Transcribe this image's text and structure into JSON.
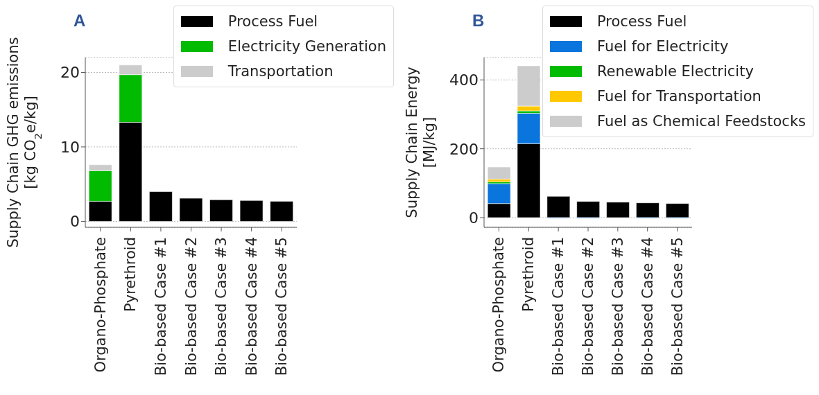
{
  "chart_data": [
    {
      "type": "bar",
      "title": "A",
      "ylabel": "Supply Chain GHG emissions\n[kg CO$_{2}$e/kg]",
      "categories": [
        "Organo-Phosphate",
        "Pyrethroid",
        "Bio-based Case #1",
        "Bio-based Case #2",
        "Bio-based Case #3",
        "Bio-based Case #4",
        "Bio-based Case #5"
      ],
      "stacked": true,
      "ylim": [
        -0.8,
        22
      ],
      "yticks": [
        0,
        10,
        20
      ],
      "grid": "y",
      "legend": "top right",
      "series": [
        {
          "name": "Process Fuel",
          "color": "#000000",
          "values": [
            2.7,
            13.3,
            4.0,
            3.1,
            2.9,
            2.8,
            2.7
          ]
        },
        {
          "name": "Electricity Generation",
          "color": "#00bb00",
          "values": [
            4.1,
            6.4,
            0,
            null,
            0,
            null,
            null
          ]
        },
        {
          "name": "Transportation",
          "color": "#cccccc",
          "values": [
            0.8,
            1.3,
            0,
            0,
            0,
            0,
            0
          ]
        }
      ]
    },
    {
      "type": "bar",
      "title": "B",
      "ylabel": "Supply Chain Energy\n[MJ/kg]",
      "categories": [
        "Organo-Phosphate",
        "Pyrethroid",
        "Bio-based Case #1",
        "Bio-based Case #2",
        "Bio-based Case #3",
        "Bio-based Case #4",
        "Bio-based Case #5"
      ],
      "stacked": true,
      "ylim": [
        -28,
        465
      ],
      "yticks": [
        0,
        200,
        400
      ],
      "grid": "y",
      "legend": "top right",
      "series": [
        {
          "name": "Process Fuel",
          "color": "#000000",
          "values": [
            41,
            215,
            62,
            47,
            45,
            43,
            41
          ]
        },
        {
          "name": "Fuel for Electricity",
          "color": "#0a75dc",
          "values": [
            58,
            88,
            -2,
            -2,
            0,
            -2,
            -2
          ]
        },
        {
          "name": "Renewable Electricity",
          "color": "#00bb00",
          "values": [
            5,
            7,
            0,
            0,
            0,
            0,
            0
          ]
        },
        {
          "name": "Fuel for Transportation",
          "color": "#ffc800",
          "values": [
            8,
            14,
            0,
            0,
            0,
            0,
            0
          ]
        },
        {
          "name": "Fuel as Chemical Feedstocks",
          "color": "#cccccc",
          "values": [
            35,
            117,
            0,
            0,
            0,
            0,
            0
          ]
        }
      ]
    }
  ]
}
